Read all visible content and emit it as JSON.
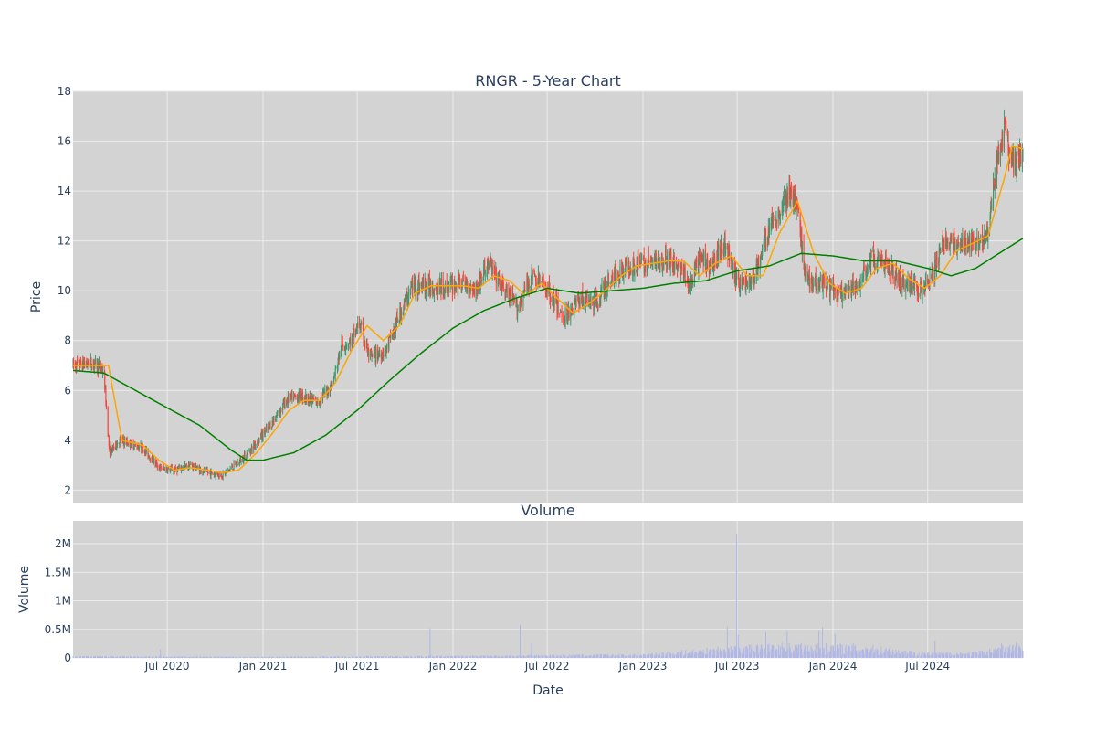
{
  "colors": {
    "plot_bg": "#d3d3d3",
    "grid": "#ebebeb",
    "increasing": "#3d9970",
    "decreasing": "#ff4136",
    "ma_short": "#ffa500",
    "ma_long": "#008000",
    "volume": "#b0b7e6"
  },
  "chart_data": [
    {
      "type": "candlestick",
      "title": "RNGR - 5-Year Chart",
      "xlabel": "",
      "ylabel": "Price",
      "ylim": [
        1.5,
        18
      ],
      "yticks": [
        2,
        4,
        6,
        8,
        10,
        12,
        14,
        16,
        18
      ],
      "xlim": [
        "2020-01-02",
        "2024-12-31"
      ],
      "grid": true,
      "legend": "none",
      "price_anchors": [
        [
          "2020-01-02",
          7.0
        ],
        [
          "2020-02-10",
          7.1
        ],
        [
          "2020-03-01",
          6.8
        ],
        [
          "2020-03-12",
          3.5
        ],
        [
          "2020-04-01",
          4.0
        ],
        [
          "2020-05-15",
          3.7
        ],
        [
          "2020-06-15",
          2.9
        ],
        [
          "2020-07-15",
          2.8
        ],
        [
          "2020-08-15",
          3.0
        ],
        [
          "2020-09-15",
          2.7
        ],
        [
          "2020-10-15",
          2.6
        ],
        [
          "2020-11-20",
          3.2
        ],
        [
          "2020-12-15",
          3.8
        ],
        [
          "2021-01-15",
          4.6
        ],
        [
          "2021-02-15",
          5.6
        ],
        [
          "2021-03-15",
          5.8
        ],
        [
          "2021-04-15",
          5.5
        ],
        [
          "2021-05-15",
          6.3
        ],
        [
          "2021-06-01",
          7.8
        ],
        [
          "2021-06-20",
          8.0
        ],
        [
          "2021-07-05",
          8.7
        ],
        [
          "2021-07-25",
          7.3
        ],
        [
          "2021-08-25",
          7.6
        ],
        [
          "2021-09-20",
          9.0
        ],
        [
          "2021-10-15",
          10.2
        ],
        [
          "2021-11-15",
          10.2
        ],
        [
          "2021-12-15",
          10.1
        ],
        [
          "2022-01-15",
          10.3
        ],
        [
          "2022-02-15",
          10.1
        ],
        [
          "2022-03-10",
          11.1
        ],
        [
          "2022-04-01",
          10.3
        ],
        [
          "2022-05-05",
          9.3
        ],
        [
          "2022-06-01",
          10.6
        ],
        [
          "2022-07-01",
          10.1
        ],
        [
          "2022-08-01",
          8.9
        ],
        [
          "2022-09-01",
          9.7
        ],
        [
          "2022-10-01",
          9.5
        ],
        [
          "2022-11-01",
          10.5
        ],
        [
          "2022-12-01",
          11.0
        ],
        [
          "2023-01-15",
          11.1
        ],
        [
          "2023-02-15",
          11.3
        ],
        [
          "2023-03-15",
          10.9
        ],
        [
          "2023-04-01",
          10.1
        ],
        [
          "2023-04-20",
          11.3
        ],
        [
          "2023-05-15",
          11.0
        ],
        [
          "2023-06-05",
          12.0
        ],
        [
          "2023-07-01",
          10.3
        ],
        [
          "2023-08-01",
          10.4
        ],
        [
          "2023-09-01",
          12.5
        ],
        [
          "2023-09-20",
          13.2
        ],
        [
          "2023-10-10",
          14.0
        ],
        [
          "2023-10-25",
          13.2
        ],
        [
          "2023-11-10",
          10.5
        ],
        [
          "2023-12-15",
          10.3
        ],
        [
          "2024-01-15",
          9.8
        ],
        [
          "2024-02-15",
          10.1
        ],
        [
          "2024-03-15",
          11.3
        ],
        [
          "2024-04-15",
          11.0
        ],
        [
          "2024-05-15",
          10.3
        ],
        [
          "2024-06-15",
          10.1
        ],
        [
          "2024-07-10",
          10.6
        ],
        [
          "2024-08-01",
          12.0
        ],
        [
          "2024-09-15",
          11.8
        ],
        [
          "2024-10-25",
          12.3
        ],
        [
          "2024-11-10",
          15.0
        ],
        [
          "2024-11-25",
          16.5
        ],
        [
          "2024-12-10",
          15.0
        ],
        [
          "2024-12-31",
          15.4
        ]
      ],
      "ma_short_anchors": [
        [
          "2020-01-02",
          7.0
        ],
        [
          "2020-03-10",
          7.0
        ],
        [
          "2020-04-05",
          4.0
        ],
        [
          "2020-05-15",
          3.8
        ],
        [
          "2020-06-15",
          3.2
        ],
        [
          "2020-07-15",
          2.8
        ],
        [
          "2020-08-15",
          2.9
        ],
        [
          "2020-10-15",
          2.7
        ],
        [
          "2020-11-15",
          2.8
        ],
        [
          "2020-12-20",
          3.5
        ],
        [
          "2021-01-20",
          4.3
        ],
        [
          "2021-02-20",
          5.2
        ],
        [
          "2021-03-20",
          5.6
        ],
        [
          "2021-04-20",
          5.6
        ],
        [
          "2021-05-20",
          6.3
        ],
        [
          "2021-06-20",
          7.6
        ],
        [
          "2021-07-20",
          8.6
        ],
        [
          "2021-08-20",
          8.0
        ],
        [
          "2021-09-20",
          8.6
        ],
        [
          "2021-10-20",
          9.9
        ],
        [
          "2021-11-20",
          10.2
        ],
        [
          "2022-01-20",
          10.2
        ],
        [
          "2022-02-20",
          10.1
        ],
        [
          "2022-03-20",
          10.6
        ],
        [
          "2022-04-20",
          10.4
        ],
        [
          "2022-05-20",
          9.8
        ],
        [
          "2022-06-20",
          10.3
        ],
        [
          "2022-07-20",
          9.7
        ],
        [
          "2022-08-20",
          9.1
        ],
        [
          "2022-09-20",
          9.5
        ],
        [
          "2022-10-20",
          10.0
        ],
        [
          "2022-11-20",
          10.6
        ],
        [
          "2022-12-20",
          11.0
        ],
        [
          "2023-02-20",
          11.2
        ],
        [
          "2023-03-20",
          11.2
        ],
        [
          "2023-04-20",
          10.6
        ],
        [
          "2023-05-20",
          11.1
        ],
        [
          "2023-06-20",
          11.4
        ],
        [
          "2023-07-20",
          10.6
        ],
        [
          "2023-08-20",
          10.6
        ],
        [
          "2023-09-20",
          12.3
        ],
        [
          "2023-10-25",
          13.6
        ],
        [
          "2023-11-25",
          11.5
        ],
        [
          "2023-12-25",
          10.3
        ],
        [
          "2024-01-25",
          9.9
        ],
        [
          "2024-02-25",
          10.1
        ],
        [
          "2024-03-25",
          10.9
        ],
        [
          "2024-04-25",
          11.1
        ],
        [
          "2024-05-25",
          10.5
        ],
        [
          "2024-06-25",
          10.1
        ],
        [
          "2024-07-25",
          10.6
        ],
        [
          "2024-08-25",
          11.6
        ],
        [
          "2024-09-25",
          11.9
        ],
        [
          "2024-10-25",
          12.2
        ],
        [
          "2024-11-25",
          14.5
        ],
        [
          "2024-12-10",
          15.8
        ],
        [
          "2024-12-31",
          15.7
        ]
      ],
      "ma_long_anchors": [
        [
          "2020-01-02",
          6.8
        ],
        [
          "2020-03-01",
          6.7
        ],
        [
          "2020-05-01",
          6.0
        ],
        [
          "2020-07-01",
          5.3
        ],
        [
          "2020-09-01",
          4.6
        ],
        [
          "2020-11-01",
          3.6
        ],
        [
          "2020-12-01",
          3.2
        ],
        [
          "2021-01-01",
          3.2
        ],
        [
          "2021-03-01",
          3.5
        ],
        [
          "2021-05-01",
          4.2
        ],
        [
          "2021-07-01",
          5.2
        ],
        [
          "2021-09-01",
          6.4
        ],
        [
          "2021-11-01",
          7.5
        ],
        [
          "2022-01-01",
          8.5
        ],
        [
          "2022-03-01",
          9.2
        ],
        [
          "2022-05-01",
          9.7
        ],
        [
          "2022-07-01",
          10.1
        ],
        [
          "2022-09-01",
          9.9
        ],
        [
          "2022-11-01",
          10.0
        ],
        [
          "2023-01-01",
          10.1
        ],
        [
          "2023-03-01",
          10.3
        ],
        [
          "2023-05-01",
          10.4
        ],
        [
          "2023-07-01",
          10.8
        ],
        [
          "2023-09-01",
          11.0
        ],
        [
          "2023-11-01",
          11.5
        ],
        [
          "2024-01-01",
          11.4
        ],
        [
          "2024-03-01",
          11.2
        ],
        [
          "2024-05-01",
          11.2
        ],
        [
          "2024-07-01",
          10.9
        ],
        [
          "2024-08-15",
          10.6
        ],
        [
          "2024-10-01",
          10.9
        ],
        [
          "2024-11-15",
          11.5
        ],
        [
          "2024-12-31",
          12.1
        ]
      ]
    },
    {
      "type": "bar",
      "title": "Volume",
      "xlabel": "Date",
      "ylabel": "Volume",
      "ylim": [
        0,
        2400000
      ],
      "yticks": [
        0,
        500000,
        1000000,
        1500000,
        2000000
      ],
      "ytick_labels": [
        "0",
        "0.5M",
        "1M",
        "1.5M",
        "2M"
      ],
      "x_ticks": [
        "2020-07-01",
        "2021-01-01",
        "2021-07-01",
        "2022-01-01",
        "2022-07-01",
        "2023-01-01",
        "2023-07-01",
        "2024-01-01",
        "2024-07-01"
      ],
      "x_tick_labels": [
        "Jul 2020",
        "Jan 2021",
        "Jul 2021",
        "Jan 2022",
        "Jul 2022",
        "Jan 2023",
        "Jul 2023",
        "Jan 2024",
        "Jul 2024"
      ],
      "grid": true,
      "volume_baseline": [
        [
          "2020-01-02",
          20000
        ],
        [
          "2021-01-01",
          15000
        ],
        [
          "2022-01-01",
          25000
        ],
        [
          "2023-01-01",
          45000
        ],
        [
          "2023-06-01",
          120000
        ],
        [
          "2023-10-01",
          160000
        ],
        [
          "2024-03-01",
          150000
        ],
        [
          "2024-07-01",
          60000
        ],
        [
          "2024-10-01",
          70000
        ],
        [
          "2024-12-31",
          180000
        ]
      ],
      "volume_spikes": [
        [
          "2020-06-18",
          150000
        ],
        [
          "2021-11-18",
          520000
        ],
        [
          "2022-05-10",
          580000
        ],
        [
          "2022-06-01",
          260000
        ],
        [
          "2023-06-12",
          550000
        ],
        [
          "2023-06-30",
          2180000
        ],
        [
          "2023-07-03",
          400000
        ],
        [
          "2023-08-25",
          450000
        ],
        [
          "2023-10-05",
          460000
        ],
        [
          "2023-12-05",
          470000
        ],
        [
          "2023-12-12",
          540000
        ],
        [
          "2024-01-05",
          420000
        ],
        [
          "2024-03-10",
          500000
        ],
        [
          "2024-05-05",
          380000
        ],
        [
          "2024-07-15",
          300000
        ],
        [
          "2024-11-20",
          260000
        ]
      ]
    }
  ]
}
